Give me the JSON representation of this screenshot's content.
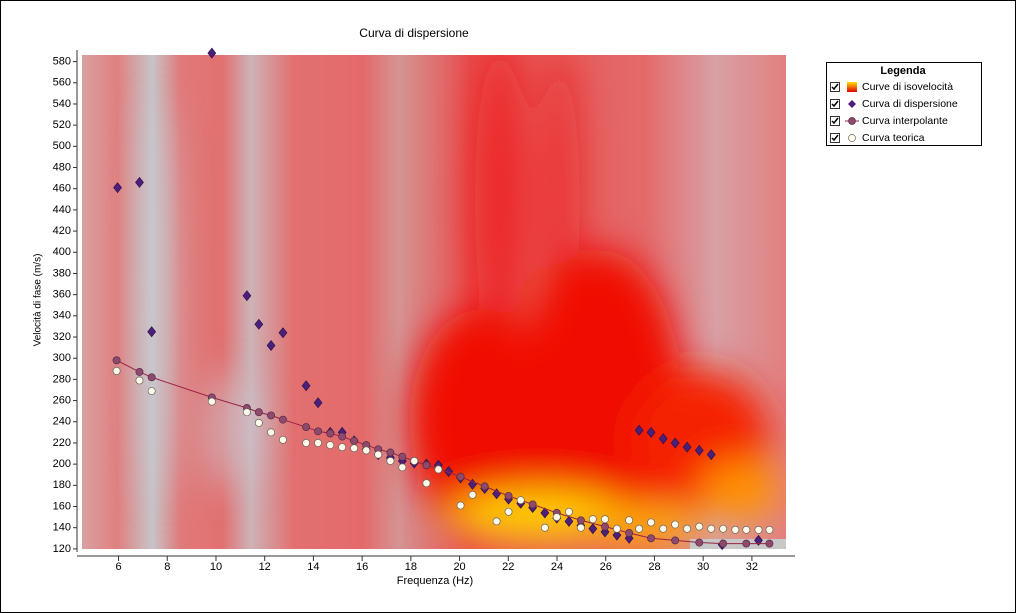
{
  "chart_data": {
    "type": "scatter",
    "title": "Curva di dispersione",
    "x_label": "Frequenza (Hz)",
    "y_label": "Velocità di fase (m/s)",
    "xlim": [
      4.5,
      33.4
    ],
    "ylim": [
      118,
      590
    ],
    "xticks": [
      6,
      8,
      10,
      12,
      14,
      16,
      18,
      20,
      22,
      24,
      26,
      28,
      30,
      32
    ],
    "yticks": [
      120,
      140,
      160,
      180,
      200,
      220,
      240,
      260,
      280,
      300,
      320,
      340,
      360,
      380,
      400,
      420,
      440,
      460,
      480,
      500,
      520,
      540,
      560,
      580
    ],
    "legend_title": "Legenda",
    "legend": "right",
    "series": [
      {
        "name": "Curve di isovelocità",
        "color": "#ff2a00"
      },
      {
        "name": "Curva di dispersione",
        "color": "#4b1f7a",
        "marker": "diamond",
        "x": [
          5.96,
          6.86,
          7.36,
          9.83,
          11.27,
          11.76,
          12.26,
          12.75,
          13.7,
          14.19,
          14.69,
          15.18,
          15.67,
          16.17,
          16.66,
          17.16,
          17.65,
          18.14,
          18.64,
          19.13,
          19.55,
          20.04,
          20.53,
          21.03,
          21.52,
          22.01,
          22.51,
          23.0,
          23.5,
          23.99,
          24.49,
          24.98,
          25.47,
          25.97,
          26.46,
          26.96,
          27.37,
          27.86,
          28.36,
          28.85,
          29.34,
          29.84,
          30.33,
          30.78,
          32.27
        ],
        "values": [
          461,
          466,
          325,
          588,
          359,
          332,
          312,
          324,
          274,
          258,
          230,
          230,
          222,
          214,
          209,
          206,
          203,
          201,
          200,
          199,
          193,
          187,
          181,
          177,
          172,
          167,
          163,
          159,
          154,
          149,
          146,
          142,
          139,
          136,
          133,
          130,
          232,
          230,
          224,
          220,
          216,
          213,
          209,
          124,
          128
        ]
      },
      {
        "name": "Curva interpolante",
        "color": "#8e4a6c",
        "marker": "circle",
        "line": true,
        "line_color": "#9a2244",
        "x": [
          5.92,
          6.86,
          7.36,
          9.83,
          11.27,
          11.76,
          12.26,
          12.75,
          13.7,
          14.19,
          14.69,
          15.18,
          15.67,
          16.17,
          16.66,
          17.16,
          17.65,
          18.14,
          18.64,
          19.13,
          20.04,
          21.03,
          22.01,
          23.0,
          23.99,
          24.98,
          25.97,
          26.96,
          27.86,
          28.85,
          29.84,
          30.82,
          31.77,
          32.72
        ],
        "values": [
          298,
          287,
          282,
          263,
          253,
          249,
          246,
          242,
          235,
          231,
          229,
          226,
          222,
          218,
          214,
          211,
          207,
          203,
          199,
          196,
          188,
          179,
          170,
          162,
          154,
          147,
          141,
          135,
          130,
          128,
          126,
          125,
          125,
          125
        ]
      },
      {
        "name": "Curva teorica",
        "color": "#fffbe8",
        "marker": "circle",
        "edge": "#666666",
        "x": [
          5.92,
          6.86,
          7.36,
          9.83,
          11.27,
          11.76,
          12.26,
          12.75,
          13.7,
          14.19,
          14.69,
          15.18,
          15.67,
          16.17,
          16.66,
          17.16,
          17.65,
          18.14,
          18.64,
          19.13,
          20.04,
          20.53,
          21.52,
          22.01,
          22.51,
          23.5,
          23.99,
          24.49,
          24.98,
          25.47,
          25.97,
          26.46,
          26.96,
          27.37,
          27.86,
          28.36,
          28.85,
          29.34,
          29.84,
          30.33,
          30.82,
          31.32,
          31.77,
          32.27,
          32.72
        ],
        "values": [
          288,
          279,
          269,
          259,
          249,
          239,
          230,
          223,
          220,
          220,
          218,
          216,
          215,
          213,
          209,
          203,
          197,
          203,
          182,
          195,
          161,
          171,
          146,
          155,
          166,
          140,
          150,
          155,
          140,
          148,
          148,
          139,
          147,
          139,
          145,
          139,
          143,
          139,
          141,
          139,
          139,
          138,
          138,
          138,
          138
        ]
      }
    ]
  }
}
